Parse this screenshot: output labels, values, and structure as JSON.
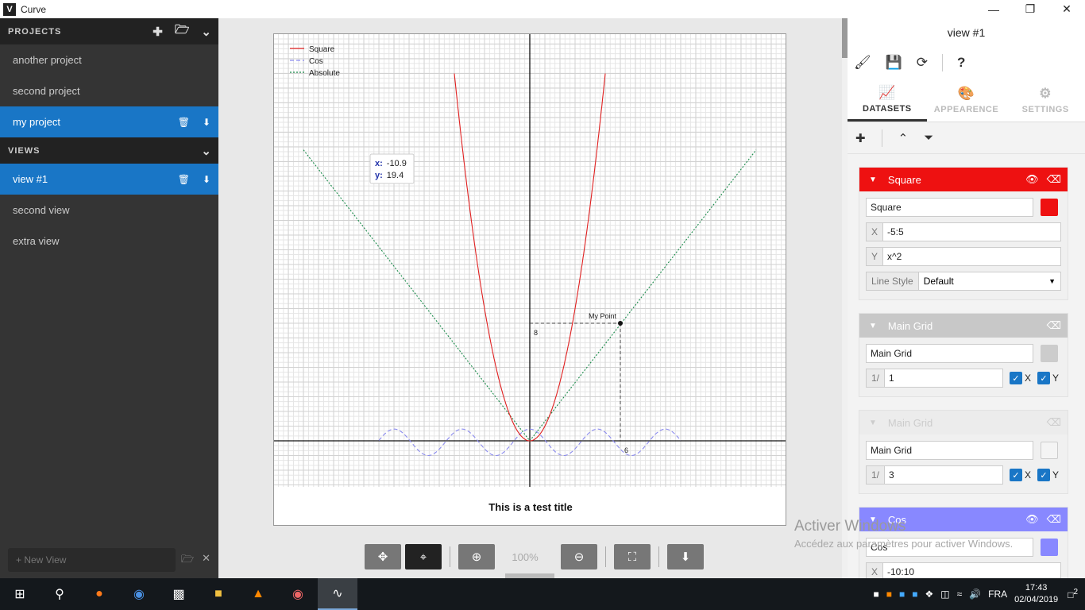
{
  "window": {
    "title": "Curve",
    "logo": "V"
  },
  "sidebar": {
    "projects_header": "PROJECTS",
    "projects": [
      {
        "label": "another project"
      },
      {
        "label": "second project"
      },
      {
        "label": "my project"
      }
    ],
    "views_header": "VIEWS",
    "views": [
      {
        "label": "view #1"
      },
      {
        "label": "second view"
      },
      {
        "label": "extra view"
      }
    ],
    "new_view_placeholder": "+ New View"
  },
  "plot": {
    "title": "This is a test title",
    "tooltip": {
      "x_label": "x:",
      "x_value": "-10.9",
      "y_label": "y:",
      "y_value": "19.4"
    },
    "point_label": "My Point",
    "point_x_label": "6",
    "point_y_label": "8",
    "legend": [
      {
        "name": "Square",
        "color": "#e02020",
        "dash": ""
      },
      {
        "name": "Cos",
        "color": "#8a8aee",
        "dash": "5,3"
      },
      {
        "name": "Absolute",
        "color": "#1a8a4a",
        "dash": "2,2"
      }
    ],
    "zoom": "100%"
  },
  "chart_data": {
    "type": "line",
    "title": "This is a test title",
    "legend_position": "top-left",
    "grid": true,
    "series": [
      {
        "name": "Square",
        "expression": "x^2",
        "x_range": "-5:5"
      },
      {
        "name": "Cos",
        "x_range": "-10:10"
      },
      {
        "name": "Absolute"
      }
    ],
    "annotations": [
      {
        "label": "My Point",
        "x": 6,
        "y": 8
      }
    ]
  },
  "panel": {
    "title": "view #1",
    "tabs": [
      {
        "label": "DATASETS",
        "icon": "chart-line-icon"
      },
      {
        "label": "APPEARENCE",
        "icon": "palette-icon"
      },
      {
        "label": "SETTINGS",
        "icon": "gear-icon"
      }
    ],
    "datasets": [
      {
        "name": "Square",
        "color": "#ee1111",
        "name_value": "Square",
        "x_label": "X",
        "x_value": "-5:5",
        "y_label": "Y",
        "y_value": "x^2",
        "line_style_label": "Line Style",
        "line_style_value": "Default"
      },
      {
        "name": "Main Grid",
        "color": "#cccccc",
        "name_value": "Main Grid",
        "step_label": "1/",
        "step_value": "1",
        "x_check": "X",
        "y_check": "Y"
      },
      {
        "name": "Main Grid",
        "color": "#f4f4f4",
        "name_value": "Main Grid",
        "step_label": "1/",
        "step_value": "3",
        "x_check": "X",
        "y_check": "Y"
      },
      {
        "name": "Cos",
        "color": "#8888ff",
        "name_value": "Cos",
        "x_label": "X",
        "x_value": "-10:10"
      }
    ]
  },
  "watermark": {
    "title": "Activer Windows",
    "subtitle": "Accédez aux paramètres pour activer Windows."
  },
  "taskbar": {
    "lang": "FRA",
    "time": "17:43",
    "date": "02/04/2019",
    "notifications": "2"
  }
}
